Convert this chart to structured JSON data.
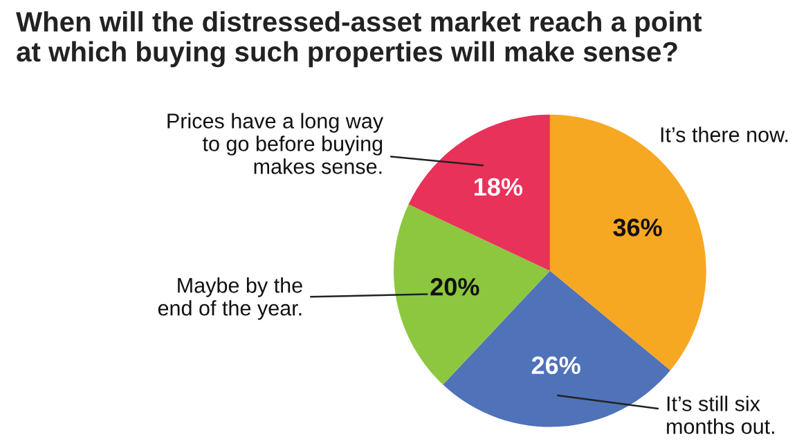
{
  "chart_data": {
    "type": "pie",
    "title": "When will the distressed-asset market reach a point\nat which buying such properties will make sense?",
    "categories": [
      "It’s there now.",
      "It’s still six\nmonths out.",
      "Maybe by the\nend of the year.",
      "Prices have a long way\nto go before buying\nmakes sense."
    ],
    "values": [
      36,
      26,
      20,
      18
    ],
    "colors": [
      "#f7a823",
      "#4f72b8",
      "#8dc63f",
      "#e8325a"
    ],
    "value_labels": [
      "36%",
      "26%",
      "20%",
      "18%"
    ]
  }
}
